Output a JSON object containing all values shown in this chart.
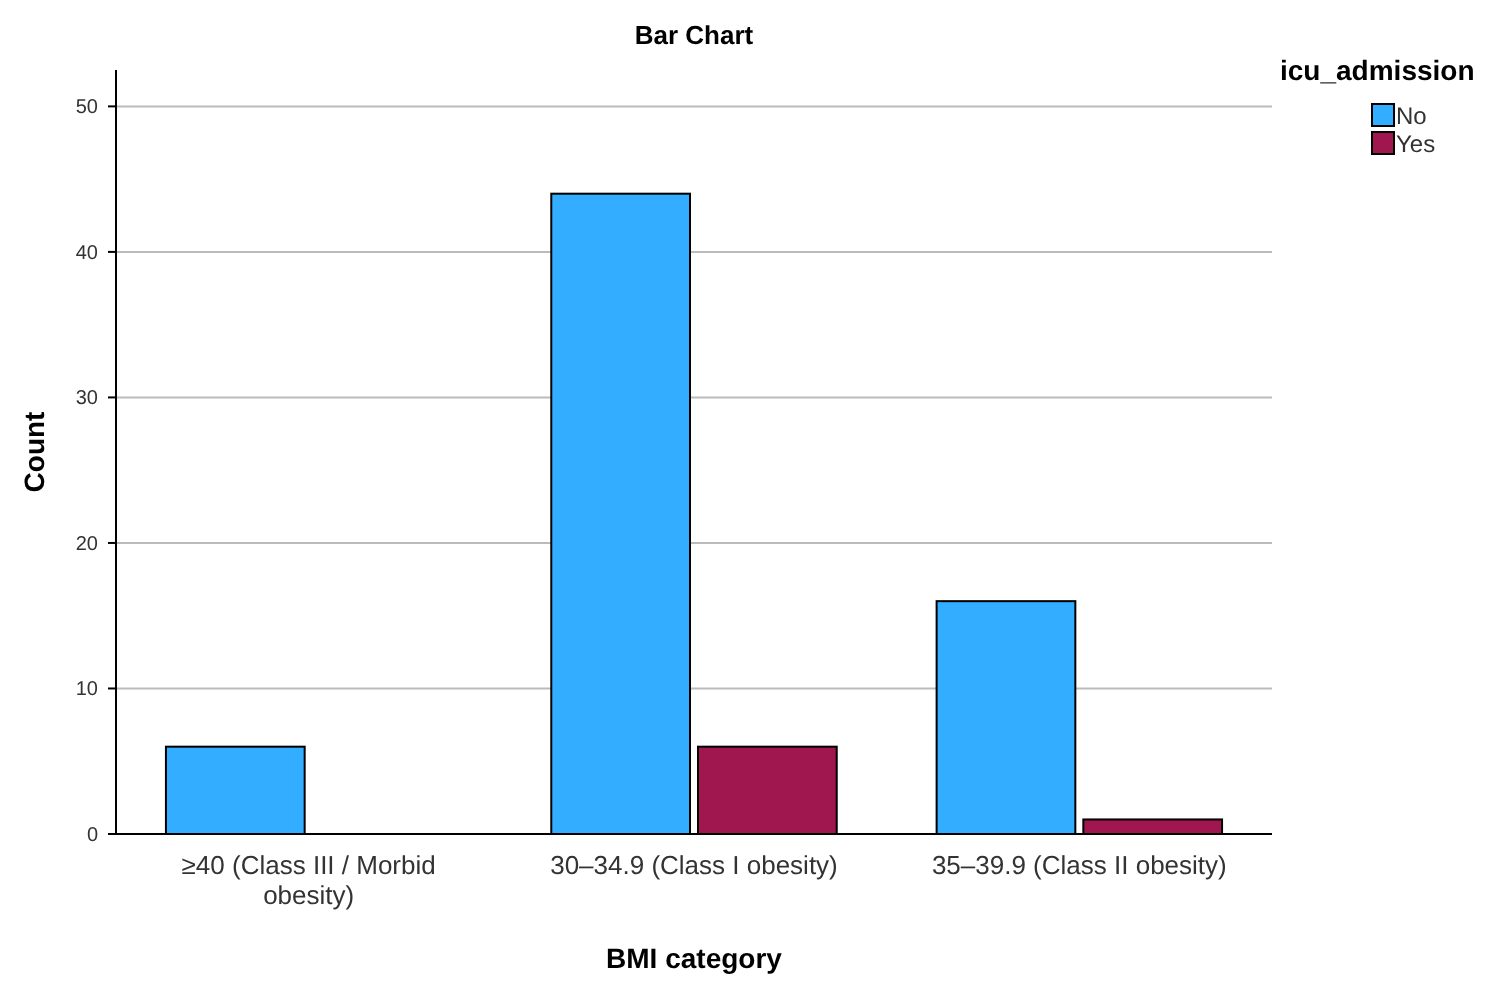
{
  "chart_data": {
    "type": "bar",
    "title": "Bar Chart",
    "xlabel": "BMI category",
    "ylabel": "Count",
    "legend_title": "icu_admission",
    "categories": [
      "≥40 (Class III / Morbid obesity)",
      "30–34.9 (Class I obesity)",
      "35–39.9 (Class II obesity)"
    ],
    "series": [
      {
        "name": "No",
        "color": "#33adff",
        "values": [
          6,
          44,
          16
        ]
      },
      {
        "name": "Yes",
        "color": "#a0174f",
        "values": [
          null,
          6,
          1
        ]
      }
    ],
    "ylim": [
      0,
      52.5
    ],
    "yticks": [
      0,
      10,
      20,
      30,
      40,
      50
    ],
    "grid": "y",
    "legend": "top right"
  }
}
